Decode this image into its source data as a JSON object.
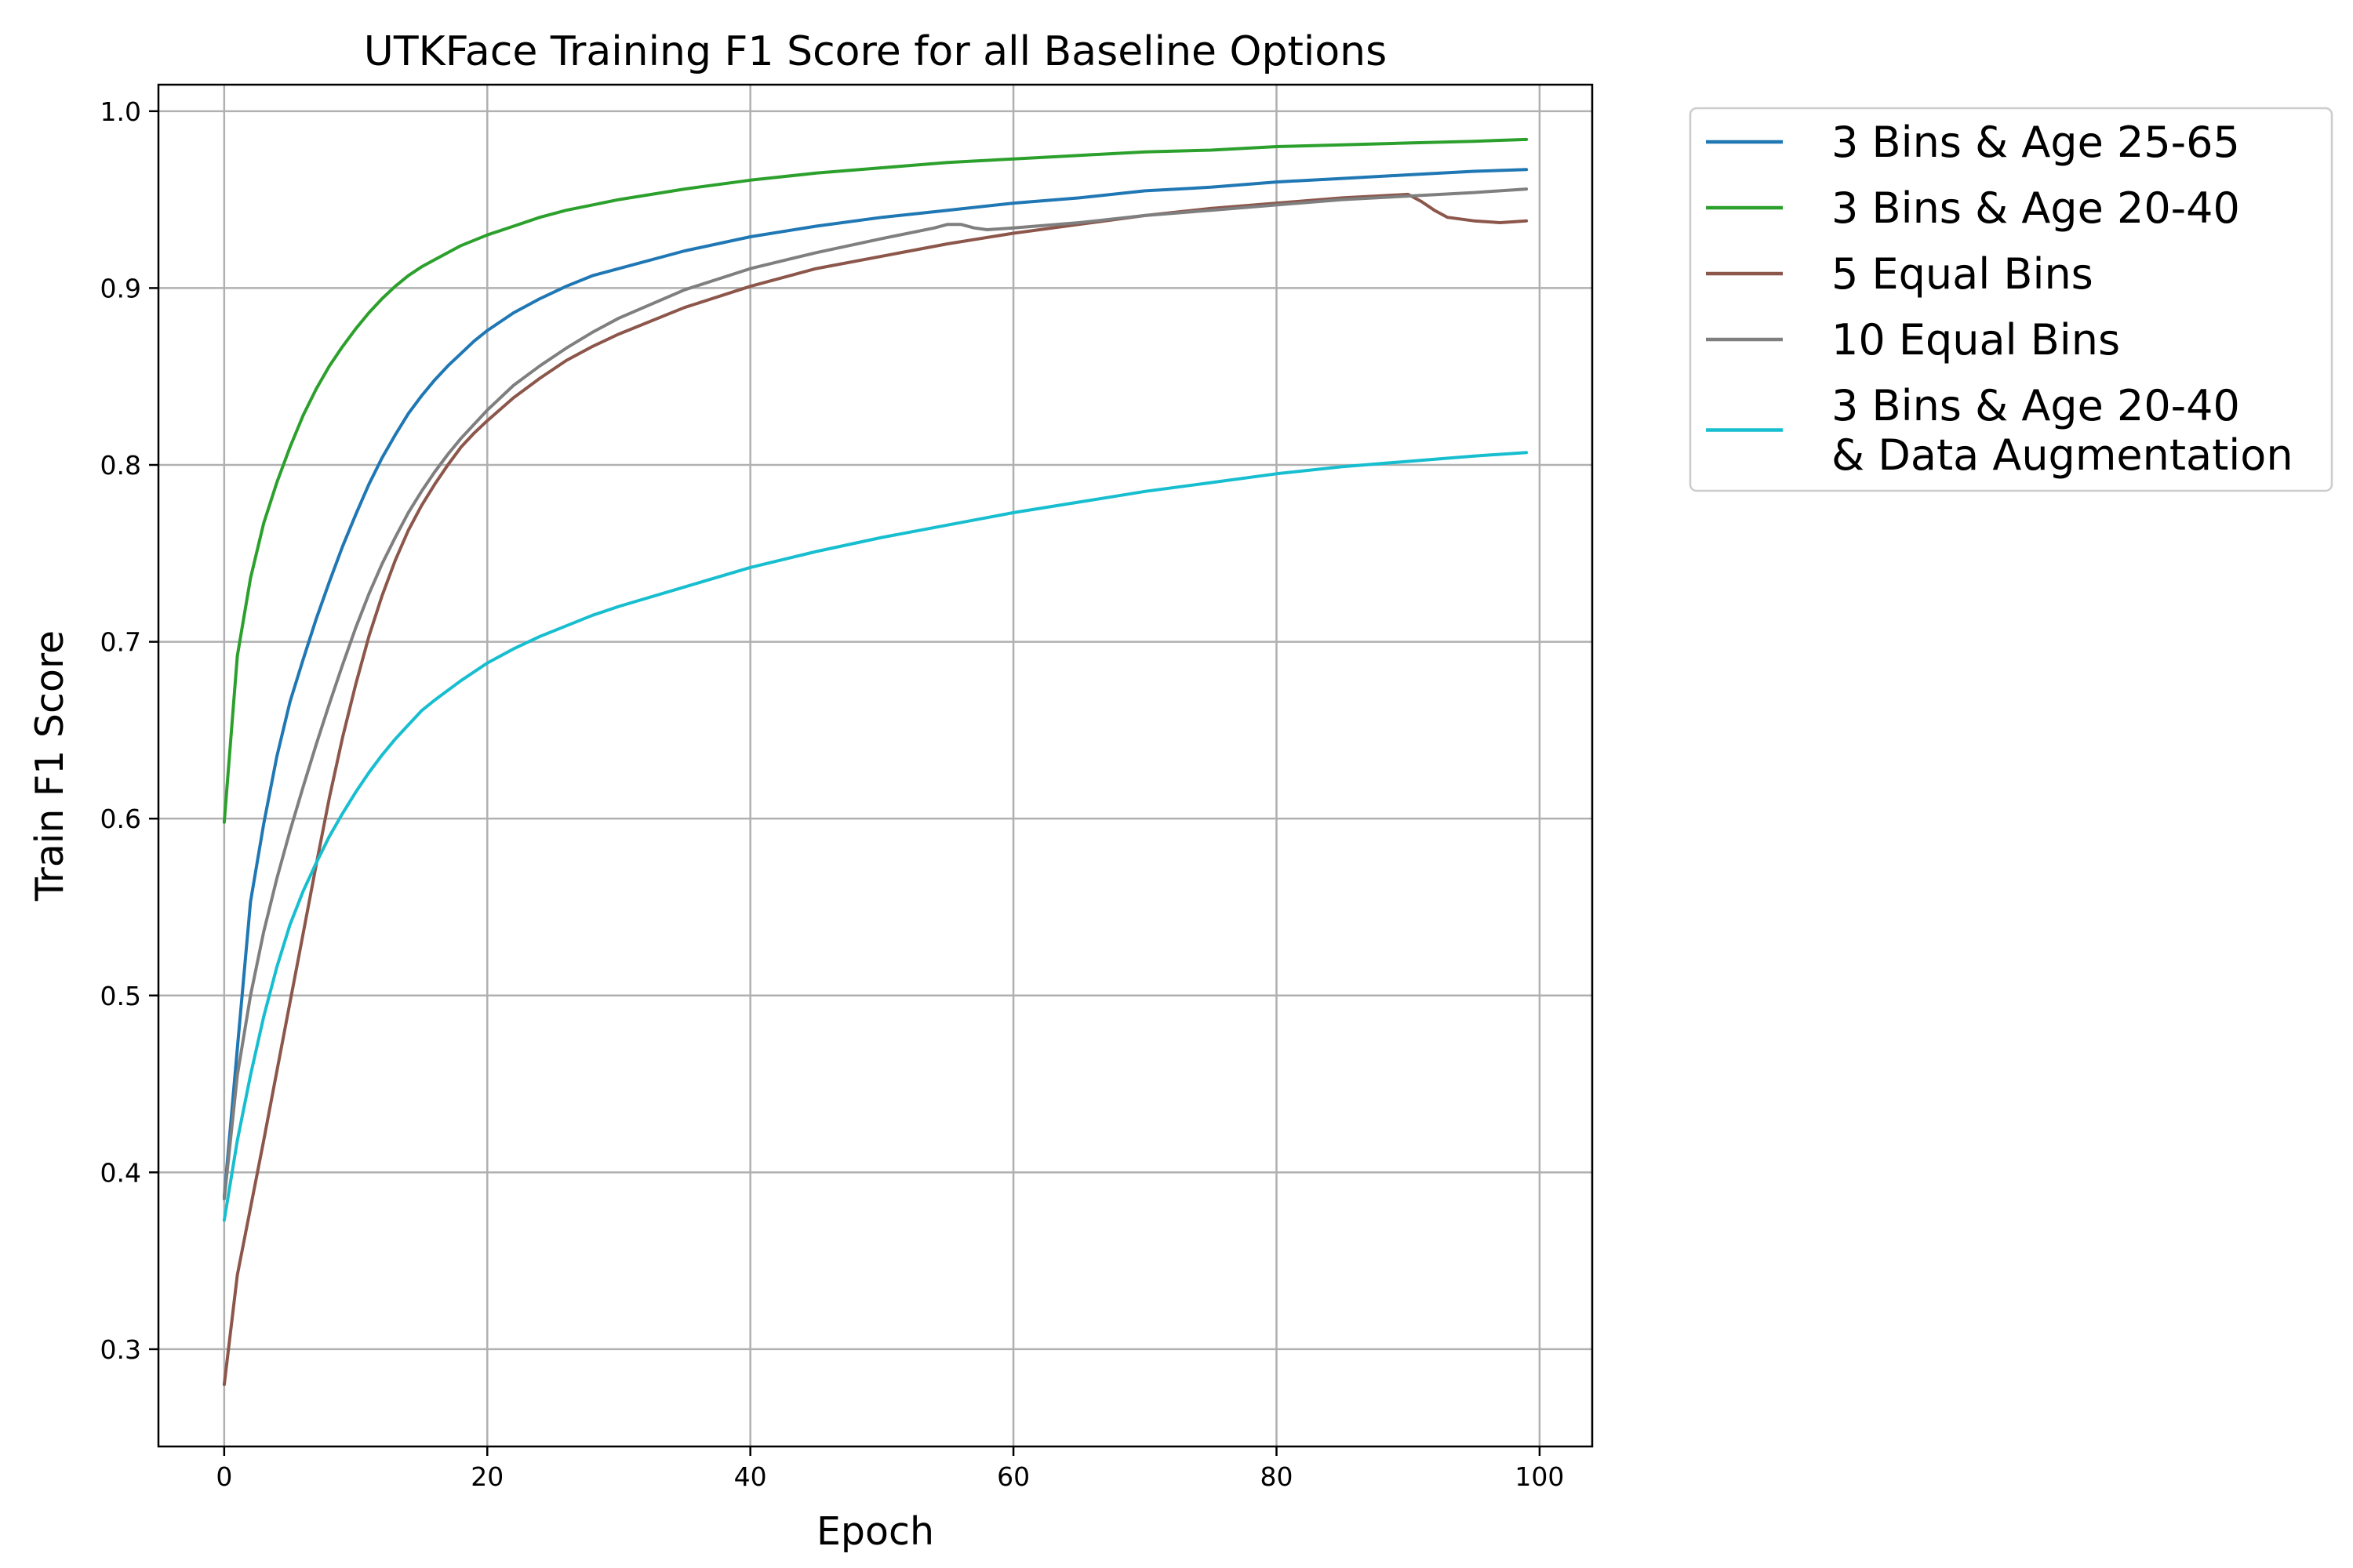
{
  "chart_data": {
    "type": "line",
    "title": "UTKFace Training F1 Score for all Baseline Options",
    "xlabel": "Epoch",
    "ylabel": "Train F1 Score",
    "xlim": [
      -5,
      104
    ],
    "ylim": [
      0.245,
      1.015
    ],
    "xticks": [
      0,
      20,
      40,
      60,
      80,
      100
    ],
    "yticks": [
      0.3,
      0.4,
      0.5,
      0.6,
      0.7,
      0.8,
      0.9,
      1.0
    ],
    "xtick_labels": [
      "0",
      "20",
      "40",
      "60",
      "80",
      "100"
    ],
    "ytick_labels": [
      "0.3",
      "0.4",
      "0.5",
      "0.6",
      "0.7",
      "0.8",
      "0.9",
      "1.0"
    ],
    "grid": true,
    "legend_position": "outside-top-right",
    "series": [
      {
        "name": "3 Bins & Age 25-65",
        "color": "#1f77b4",
        "points": [
          [
            0,
            0.386
          ],
          [
            1,
            0.47
          ],
          [
            2,
            0.553
          ],
          [
            3,
            0.597
          ],
          [
            4,
            0.635
          ],
          [
            5,
            0.666
          ],
          [
            6,
            0.69
          ],
          [
            7,
            0.713
          ],
          [
            8,
            0.734
          ],
          [
            9,
            0.754
          ],
          [
            10,
            0.772
          ],
          [
            11,
            0.789
          ],
          [
            12,
            0.804
          ],
          [
            13,
            0.817
          ],
          [
            14,
            0.829
          ],
          [
            15,
            0.839
          ],
          [
            16,
            0.848
          ],
          [
            17,
            0.856
          ],
          [
            18,
            0.863
          ],
          [
            19,
            0.87
          ],
          [
            20,
            0.876
          ],
          [
            22,
            0.886
          ],
          [
            24,
            0.894
          ],
          [
            26,
            0.901
          ],
          [
            28,
            0.907
          ],
          [
            30,
            0.911
          ],
          [
            35,
            0.921
          ],
          [
            40,
            0.929
          ],
          [
            45,
            0.935
          ],
          [
            50,
            0.94
          ],
          [
            55,
            0.944
          ],
          [
            60,
            0.948
          ],
          [
            65,
            0.951
          ],
          [
            70,
            0.955
          ],
          [
            75,
            0.957
          ],
          [
            80,
            0.96
          ],
          [
            85,
            0.962
          ],
          [
            90,
            0.964
          ],
          [
            95,
            0.966
          ],
          [
            99,
            0.967
          ]
        ]
      },
      {
        "name": "3 Bins & Age 20-40",
        "color": "#2ca02c",
        "points": [
          [
            0,
            0.598
          ],
          [
            1,
            0.692
          ],
          [
            2,
            0.736
          ],
          [
            3,
            0.767
          ],
          [
            4,
            0.79
          ],
          [
            5,
            0.81
          ],
          [
            6,
            0.828
          ],
          [
            7,
            0.843
          ],
          [
            8,
            0.856
          ],
          [
            9,
            0.867
          ],
          [
            10,
            0.877
          ],
          [
            11,
            0.886
          ],
          [
            12,
            0.894
          ],
          [
            13,
            0.901
          ],
          [
            14,
            0.907
          ],
          [
            15,
            0.912
          ],
          [
            16,
            0.916
          ],
          [
            18,
            0.924
          ],
          [
            20,
            0.93
          ],
          [
            22,
            0.935
          ],
          [
            24,
            0.94
          ],
          [
            26,
            0.944
          ],
          [
            28,
            0.947
          ],
          [
            30,
            0.95
          ],
          [
            35,
            0.956
          ],
          [
            40,
            0.961
          ],
          [
            45,
            0.965
          ],
          [
            50,
            0.968
          ],
          [
            55,
            0.971
          ],
          [
            60,
            0.973
          ],
          [
            65,
            0.975
          ],
          [
            70,
            0.977
          ],
          [
            75,
            0.978
          ],
          [
            80,
            0.98
          ],
          [
            85,
            0.981
          ],
          [
            90,
            0.982
          ],
          [
            95,
            0.983
          ],
          [
            99,
            0.984
          ]
        ]
      },
      {
        "name": "5 Equal Bins",
        "color": "#8c564b",
        "points": [
          [
            0,
            0.28
          ],
          [
            1,
            0.342
          ],
          [
            2,
            0.38
          ],
          [
            3,
            0.418
          ],
          [
            4,
            0.457
          ],
          [
            5,
            0.496
          ],
          [
            6,
            0.535
          ],
          [
            7,
            0.574
          ],
          [
            8,
            0.612
          ],
          [
            9,
            0.646
          ],
          [
            10,
            0.676
          ],
          [
            11,
            0.703
          ],
          [
            12,
            0.726
          ],
          [
            13,
            0.746
          ],
          [
            14,
            0.763
          ],
          [
            15,
            0.777
          ],
          [
            16,
            0.789
          ],
          [
            17,
            0.8
          ],
          [
            18,
            0.81
          ],
          [
            19,
            0.818
          ],
          [
            20,
            0.825
          ],
          [
            22,
            0.838
          ],
          [
            24,
            0.849
          ],
          [
            26,
            0.859
          ],
          [
            28,
            0.867
          ],
          [
            30,
            0.874
          ],
          [
            35,
            0.889
          ],
          [
            40,
            0.901
          ],
          [
            45,
            0.911
          ],
          [
            50,
            0.918
          ],
          [
            55,
            0.925
          ],
          [
            60,
            0.931
          ],
          [
            65,
            0.936
          ],
          [
            70,
            0.941
          ],
          [
            75,
            0.945
          ],
          [
            80,
            0.948
          ],
          [
            85,
            0.951
          ],
          [
            90,
            0.953
          ],
          [
            91,
            0.949
          ],
          [
            92,
            0.944
          ],
          [
            93,
            0.94
          ],
          [
            95,
            0.938
          ],
          [
            97,
            0.937
          ],
          [
            99,
            0.938
          ]
        ]
      },
      {
        "name": "10 Equal Bins",
        "color": "#7f7f7f",
        "points": [
          [
            0,
            0.385
          ],
          [
            1,
            0.455
          ],
          [
            2,
            0.5
          ],
          [
            3,
            0.536
          ],
          [
            4,
            0.566
          ],
          [
            5,
            0.593
          ],
          [
            6,
            0.618
          ],
          [
            7,
            0.642
          ],
          [
            8,
            0.665
          ],
          [
            9,
            0.687
          ],
          [
            10,
            0.708
          ],
          [
            11,
            0.727
          ],
          [
            12,
            0.744
          ],
          [
            13,
            0.759
          ],
          [
            14,
            0.773
          ],
          [
            15,
            0.785
          ],
          [
            16,
            0.796
          ],
          [
            17,
            0.806
          ],
          [
            18,
            0.815
          ],
          [
            19,
            0.823
          ],
          [
            20,
            0.831
          ],
          [
            22,
            0.845
          ],
          [
            24,
            0.856
          ],
          [
            26,
            0.866
          ],
          [
            28,
            0.875
          ],
          [
            30,
            0.883
          ],
          [
            35,
            0.899
          ],
          [
            40,
            0.911
          ],
          [
            45,
            0.92
          ],
          [
            50,
            0.928
          ],
          [
            54,
            0.934
          ],
          [
            55,
            0.936
          ],
          [
            56,
            0.936
          ],
          [
            57,
            0.934
          ],
          [
            58,
            0.933
          ],
          [
            60,
            0.934
          ],
          [
            65,
            0.937
          ],
          [
            70,
            0.941
          ],
          [
            75,
            0.944
          ],
          [
            80,
            0.947
          ],
          [
            85,
            0.95
          ],
          [
            90,
            0.952
          ],
          [
            95,
            0.954
          ],
          [
            99,
            0.956
          ]
        ]
      },
      {
        "name": "3 Bins & Age 20-40\n& Data Augmentation",
        "color": "#17becf",
        "points": [
          [
            0,
            0.373
          ],
          [
            1,
            0.418
          ],
          [
            2,
            0.455
          ],
          [
            3,
            0.488
          ],
          [
            4,
            0.516
          ],
          [
            5,
            0.54
          ],
          [
            6,
            0.559
          ],
          [
            7,
            0.575
          ],
          [
            8,
            0.59
          ],
          [
            9,
            0.603
          ],
          [
            10,
            0.615
          ],
          [
            11,
            0.626
          ],
          [
            12,
            0.636
          ],
          [
            13,
            0.645
          ],
          [
            14,
            0.653
          ],
          [
            15,
            0.661
          ],
          [
            16,
            0.667
          ],
          [
            18,
            0.678
          ],
          [
            20,
            0.688
          ],
          [
            22,
            0.696
          ],
          [
            24,
            0.703
          ],
          [
            26,
            0.709
          ],
          [
            28,
            0.715
          ],
          [
            30,
            0.72
          ],
          [
            35,
            0.731
          ],
          [
            40,
            0.742
          ],
          [
            45,
            0.751
          ],
          [
            50,
            0.759
          ],
          [
            55,
            0.766
          ],
          [
            60,
            0.773
          ],
          [
            65,
            0.779
          ],
          [
            70,
            0.785
          ],
          [
            75,
            0.79
          ],
          [
            80,
            0.795
          ],
          [
            85,
            0.799
          ],
          [
            90,
            0.802
          ],
          [
            95,
            0.805
          ],
          [
            99,
            0.807
          ]
        ]
      }
    ]
  }
}
